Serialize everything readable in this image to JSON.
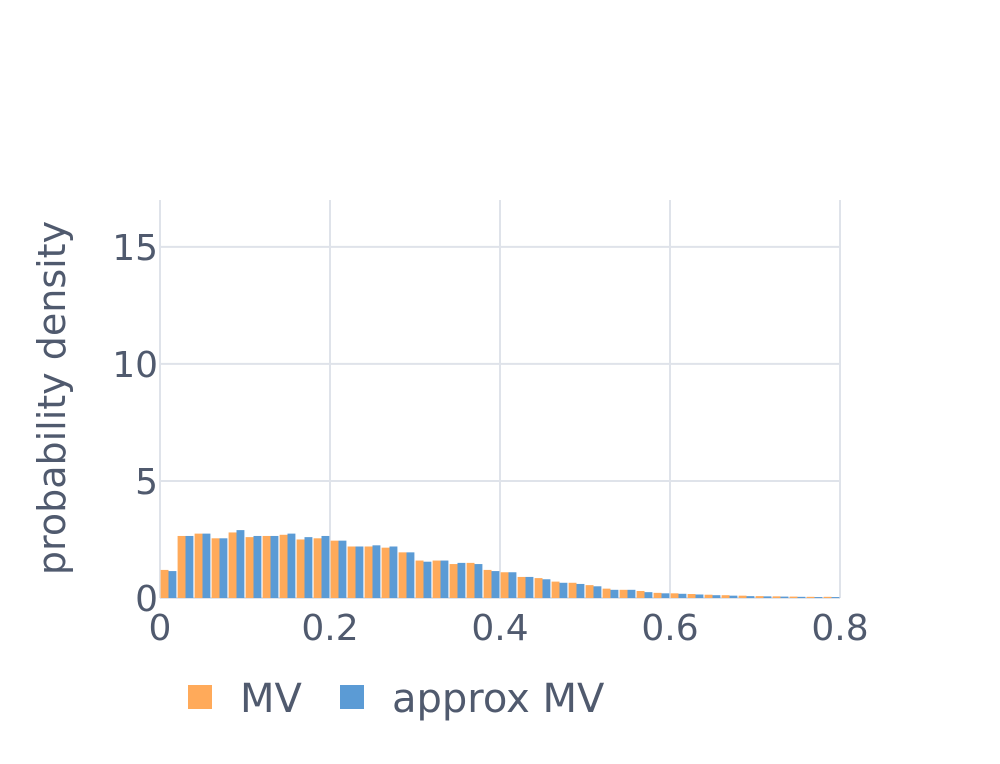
{
  "colors": {
    "MV": "#ffaa5a",
    "approx MV": "#5b9bd5",
    "grid": "#dfe3ea",
    "text": "#505a6e"
  },
  "chart_data": {
    "type": "bar",
    "xlabel": "",
    "ylabel": "probability density",
    "xlim": [
      0,
      0.8
    ],
    "ylim": [
      0,
      17
    ],
    "x_ticks": [
      "0",
      "0.2",
      "0.4",
      "0.6",
      "0.8"
    ],
    "y_ticks": [
      "0",
      "5",
      "10",
      "15"
    ],
    "grid": true,
    "legend_position": "bottom-left",
    "bin_width": 0.02,
    "x": [
      0.0,
      0.02,
      0.04,
      0.06,
      0.08,
      0.1,
      0.12,
      0.14,
      0.16,
      0.18,
      0.2,
      0.22,
      0.24,
      0.26,
      0.28,
      0.3,
      0.32,
      0.34,
      0.36,
      0.38,
      0.4,
      0.42,
      0.44,
      0.46,
      0.48,
      0.5,
      0.52,
      0.54,
      0.56,
      0.58,
      0.6,
      0.62,
      0.64,
      0.66,
      0.68,
      0.7,
      0.72,
      0.74,
      0.76,
      0.78
    ],
    "series": [
      {
        "name": "MV",
        "values": [
          1.2,
          2.65,
          2.75,
          2.55,
          2.8,
          2.6,
          2.65,
          2.7,
          2.5,
          2.55,
          2.45,
          2.2,
          2.2,
          2.15,
          1.95,
          1.6,
          1.6,
          1.45,
          1.5,
          1.2,
          1.1,
          0.9,
          0.85,
          0.7,
          0.65,
          0.55,
          0.4,
          0.35,
          0.3,
          0.22,
          0.2,
          0.17,
          0.14,
          0.12,
          0.1,
          0.08,
          0.07,
          0.06,
          0.05,
          0.05
        ]
      },
      {
        "name": "approx MV",
        "values": [
          1.15,
          2.65,
          2.75,
          2.55,
          2.9,
          2.65,
          2.65,
          2.75,
          2.6,
          2.65,
          2.45,
          2.2,
          2.25,
          2.2,
          1.95,
          1.55,
          1.6,
          1.5,
          1.45,
          1.15,
          1.1,
          0.9,
          0.8,
          0.65,
          0.6,
          0.5,
          0.35,
          0.35,
          0.25,
          0.2,
          0.18,
          0.15,
          0.12,
          0.1,
          0.08,
          0.07,
          0.06,
          0.05,
          0.04,
          0.04
        ]
      }
    ]
  }
}
